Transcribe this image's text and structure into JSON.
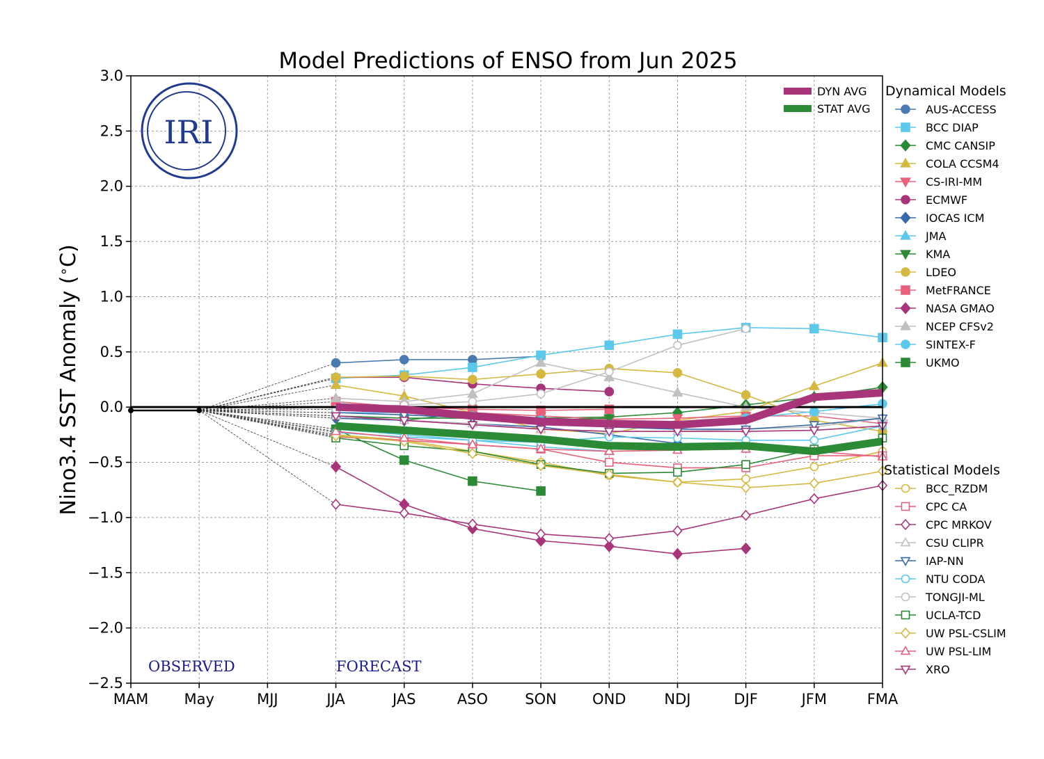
{
  "chart_data": {
    "type": "line",
    "title": "Model Predictions of ENSO from Jun 2025",
    "ylabel": "Nino3.4 SST Anomaly ($^\\circ$C)",
    "ylabel_parts": {
      "pre": "Nino3.4 SST Anomaly (",
      "deg": "∘",
      "post": "C)"
    },
    "xlabel": "",
    "categories": [
      "MAM",
      "May",
      "MJJ",
      "JJA",
      "JAS",
      "ASO",
      "SON",
      "OND",
      "NDJ",
      "DJF",
      "JFM",
      "FMA"
    ],
    "ylim": [
      -2.5,
      3.0
    ],
    "yticks": [
      3.0,
      2.5,
      2.0,
      1.5,
      1.0,
      0.5,
      0.0,
      -0.5,
      -1.0,
      -1.5,
      -2.0,
      -2.5
    ],
    "ytick_labels": [
      "3.0",
      "2.5",
      "2.0",
      "1.5",
      "1.0",
      "0.5",
      "0.0",
      "−0.5",
      "−1.0",
      "−1.5",
      "−2.0",
      "−2.5"
    ],
    "grid": true,
    "observed": {
      "x": [
        0,
        1
      ],
      "y": [
        -0.03,
        -0.03
      ]
    },
    "observed_label": "OBSERVED",
    "forecast_label": "FORECAST",
    "logo_text": "IRI",
    "legend_dynamical_title": "Dynamical Models",
    "legend_statistical_title": "Statistical Models",
    "averages": [
      {
        "name": "DYN AVG",
        "color": "#a8357a",
        "values": [
          0.0,
          -0.02,
          -0.08,
          -0.13,
          -0.15,
          -0.16,
          -0.12,
          0.09,
          0.13
        ]
      },
      {
        "name": "STAT AVG",
        "color": "#2a8a36",
        "values": [
          -0.17,
          -0.21,
          -0.25,
          -0.29,
          -0.35,
          -0.36,
          -0.35,
          -0.4,
          -0.31
        ]
      }
    ],
    "dynamical": [
      {
        "name": "AUS-ACCESS",
        "color": "#4a7ab0",
        "marker": "circle",
        "filled": true,
        "values": [
          0.4,
          0.43,
          0.43,
          0.46
        ]
      },
      {
        "name": "BCC DIAP",
        "color": "#5bc8ec",
        "marker": "square",
        "filled": true,
        "values": [
          0.26,
          0.29,
          0.36,
          0.47,
          0.56,
          0.66,
          0.72,
          0.71,
          0.63
        ]
      },
      {
        "name": "CMC CANSIP",
        "color": "#2a8a36",
        "marker": "diamond",
        "filled": true,
        "values": [
          -0.1,
          -0.12,
          -0.05,
          -0.1,
          -0.09,
          -0.05,
          0.02,
          0.09,
          0.18
        ]
      },
      {
        "name": "COLA CCSM4",
        "color": "#d4b840",
        "marker": "triangle-up",
        "filled": true,
        "values": [
          0.2,
          0.1,
          -0.05,
          -0.2,
          -0.24,
          -0.12,
          -0.04,
          0.19,
          0.4
        ]
      },
      {
        "name": "CS-IRI-MM",
        "color": "#e8607a",
        "marker": "triangle-down",
        "filled": true,
        "values": [
          0.0,
          -0.03,
          -0.05,
          -0.08,
          -0.11,
          -0.1,
          -0.08,
          -0.08,
          -0.15
        ]
      },
      {
        "name": "ECMWF",
        "color": "#a8357a",
        "marker": "circle",
        "filled": true,
        "values": [
          0.27,
          0.27,
          0.21,
          0.17,
          0.14
        ]
      },
      {
        "name": "IOCAS ICM",
        "color": "#3a6aa8",
        "marker": "diamond",
        "filled": true,
        "values": [
          -0.1,
          -0.12,
          -0.15,
          -0.18,
          -0.25,
          -0.33
        ]
      },
      {
        "name": "JMA",
        "color": "#5bc8ec",
        "marker": "triangle-up",
        "filled": true,
        "values": [
          -0.2,
          -0.25,
          -0.3,
          -0.36,
          -0.4
        ]
      },
      {
        "name": "KMA",
        "color": "#2a8a36",
        "marker": "triangle-down",
        "filled": true,
        "values": [
          -0.08,
          -0.1,
          -0.1,
          -0.12,
          -0.1
        ]
      },
      {
        "name": "LDEO",
        "color": "#d4b840",
        "marker": "circle",
        "filled": true,
        "values": [
          0.27,
          0.28,
          0.25,
          0.3,
          0.35,
          0.31,
          0.11,
          -0.12,
          -0.22
        ]
      },
      {
        "name": "MetFRANCE",
        "color": "#e8607a",
        "marker": "square",
        "filled": true,
        "values": [
          0.05,
          0.0,
          -0.02,
          -0.03,
          -0.02
        ]
      },
      {
        "name": "NASA GMAO",
        "color": "#a8357a",
        "marker": "diamond",
        "filled": true,
        "values": [
          -0.54,
          -0.88,
          -1.1,
          -1.21,
          -1.26,
          -1.33,
          -1.28
        ]
      },
      {
        "name": "NCEP CFSv2",
        "color": "#c0c0c0",
        "marker": "triangle-up",
        "filled": true,
        "values": [
          0.08,
          0.05,
          0.12,
          0.4,
          0.27,
          0.13,
          0.0,
          -0.05,
          -0.1
        ]
      },
      {
        "name": "SINTEX-F",
        "color": "#5bc8ec",
        "marker": "circle",
        "filled": true,
        "values": [
          -0.05,
          -0.05,
          -0.08,
          -0.12,
          -0.18,
          -0.2,
          -0.1,
          -0.04,
          0.03
        ]
      },
      {
        "name": "UKMO",
        "color": "#2a8a36",
        "marker": "square",
        "filled": true,
        "values": [
          -0.2,
          -0.48,
          -0.67,
          -0.76
        ]
      }
    ],
    "statistical": [
      {
        "name": "BCC_RZDM",
        "color": "#d4b840",
        "marker": "circle",
        "filled": false,
        "values": [
          -0.25,
          -0.3,
          -0.4,
          -0.5,
          -0.62,
          -0.68,
          -0.65,
          -0.54,
          -0.4
        ]
      },
      {
        "name": "CPC CA",
        "color": "#e8607a",
        "marker": "square",
        "filled": false,
        "values": [
          -0.27,
          -0.3,
          -0.34,
          -0.38,
          -0.5,
          -0.55,
          -0.55,
          -0.44,
          -0.44
        ]
      },
      {
        "name": "CPC MRKOV",
        "color": "#a8357a",
        "marker": "diamond",
        "filled": false,
        "values": [
          -0.88,
          -0.96,
          -1.06,
          -1.15,
          -1.19,
          -1.12,
          -0.98,
          -0.83,
          -0.71
        ]
      },
      {
        "name": "CSU CLIPR",
        "color": "#c0c0c0",
        "marker": "triangle-up",
        "filled": false,
        "values": [
          -0.08,
          -0.12,
          -0.15,
          -0.2,
          -0.22,
          -0.22,
          -0.2,
          -0.18,
          -0.1
        ]
      },
      {
        "name": "IAP-NN",
        "color": "#3a6aa8",
        "marker": "triangle-down",
        "filled": false,
        "values": [
          -0.05,
          -0.07,
          -0.1,
          -0.13,
          -0.18,
          -0.2,
          -0.2,
          -0.16,
          -0.1
        ]
      },
      {
        "name": "NTU CODA",
        "color": "#5bc8ec",
        "marker": "circle",
        "filled": false,
        "values": [
          -0.23,
          -0.27,
          -0.3,
          -0.32,
          -0.27,
          -0.28,
          -0.3,
          -0.3,
          -0.17
        ]
      },
      {
        "name": "TONGJI-ML",
        "color": "#c0c0c0",
        "marker": "circle",
        "filled": false,
        "values": [
          -0.02,
          0.02,
          0.05,
          0.12,
          0.32,
          0.56,
          0.71
        ]
      },
      {
        "name": "UCLA-TCD",
        "color": "#2a8a36",
        "marker": "square",
        "filled": false,
        "values": [
          -0.28,
          -0.35,
          -0.4,
          -0.52,
          -0.6,
          -0.59,
          -0.52,
          -0.38,
          -0.28
        ]
      },
      {
        "name": "UW PSL-CSLIM",
        "color": "#d4b840",
        "marker": "diamond",
        "filled": false,
        "values": [
          -0.26,
          -0.31,
          -0.42,
          -0.53,
          -0.61,
          -0.68,
          -0.73,
          -0.69,
          -0.58
        ]
      },
      {
        "name": "UW PSL-LIM",
        "color": "#e8607a",
        "marker": "triangle-up",
        "filled": false,
        "values": [
          -0.22,
          -0.28,
          -0.34,
          -0.38,
          -0.4,
          -0.39,
          -0.38,
          -0.4,
          -0.45
        ]
      },
      {
        "name": "XRO",
        "color": "#a8357a",
        "marker": "triangle-down",
        "filled": false,
        "values": [
          -0.08,
          -0.12,
          -0.16,
          -0.2,
          -0.22,
          -0.22,
          -0.22,
          -0.21,
          -0.17
        ]
      }
    ]
  }
}
